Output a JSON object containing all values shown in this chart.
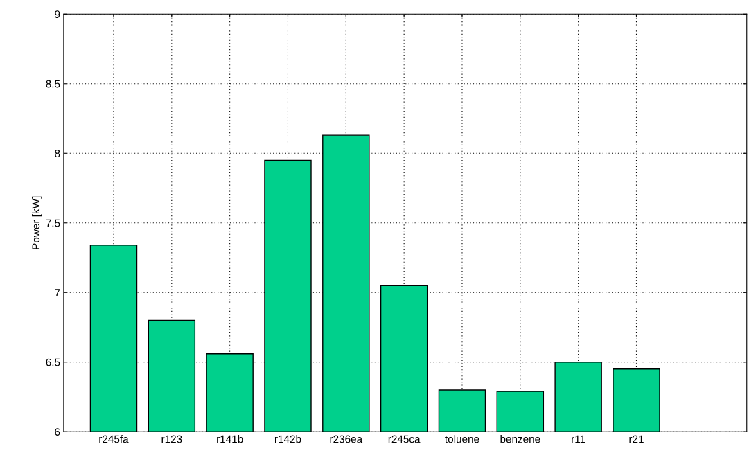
{
  "chart_data": {
    "type": "bar",
    "ylabel": "Power [kW]",
    "categories": [
      "r245fa",
      "r123",
      "r141b",
      "r142b",
      "r236ea",
      "r245ca",
      "toluene",
      "benzene",
      "r11",
      "r21"
    ],
    "values": [
      7.34,
      6.8,
      6.56,
      7.95,
      8.13,
      7.05,
      6.3,
      6.29,
      6.5,
      6.45
    ],
    "color": "#00d08c",
    "ylim": [
      6,
      9
    ],
    "yticks": [
      6,
      6.5,
      7,
      7.5,
      8,
      8.5,
      9
    ],
    "grid": true
  }
}
